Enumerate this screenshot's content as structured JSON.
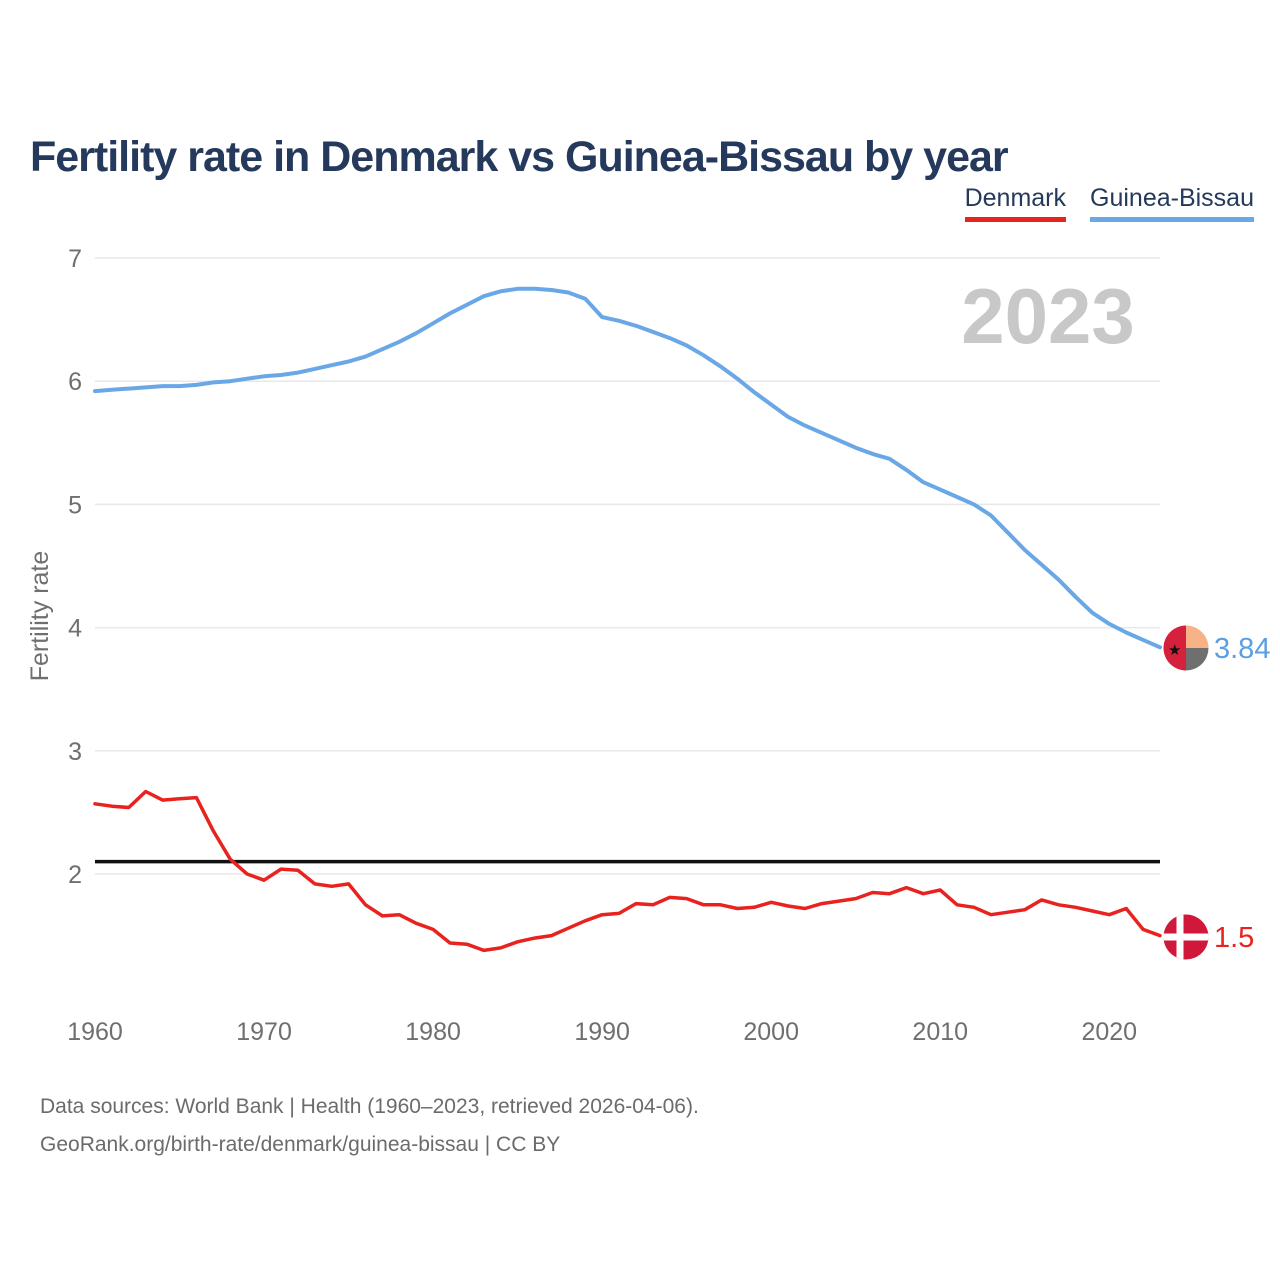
{
  "title": "Fertility rate in Denmark vs Guinea-Bissau by year",
  "watermark": "2023",
  "legend": [
    {
      "label": "Denmark",
      "color": "#e8231f"
    },
    {
      "label": "Guinea-Bissau",
      "color": "#6aa7e6"
    }
  ],
  "y_axis": {
    "label": "Fertility rate",
    "ticks": [
      7,
      6,
      5,
      4,
      3,
      2
    ]
  },
  "x_axis": {
    "ticks": [
      1960,
      1970,
      1980,
      1990,
      2000,
      2010,
      2020
    ]
  },
  "reference_line": {
    "value": 2.1,
    "color": "#111111"
  },
  "end_labels": {
    "guinea_bissau": "3.84",
    "denmark": "1.5"
  },
  "source": {
    "line1": "Data sources: World Bank | Health (1960–2023, retrieved 2026-04-06).",
    "line2": "GeoRank.org/birth-rate/denmark/guinea-bissau | CC BY"
  },
  "colors": {
    "title": "#24395b",
    "grid": "#e8e8e8",
    "tick_text": "#6f6f6f",
    "watermark": "#c8c8c8",
    "denmark_line": "#e8231f",
    "guinea_bissau_line": "#6aa7e6",
    "reference_line": "#111111"
  },
  "chart_data": {
    "type": "line",
    "title": "Fertility rate in Denmark vs Guinea-Bissau by year",
    "xlabel": "",
    "ylabel": "Fertility rate",
    "x_range": [
      1960,
      2023
    ],
    "ylim": [
      1.2,
      7.05
    ],
    "grid": "horizontal",
    "legend_position": "top-right",
    "reference_line": 2.1,
    "x": [
      1960,
      1961,
      1962,
      1963,
      1964,
      1965,
      1966,
      1967,
      1968,
      1969,
      1970,
      1971,
      1972,
      1973,
      1974,
      1975,
      1976,
      1977,
      1978,
      1979,
      1980,
      1981,
      1982,
      1983,
      1984,
      1985,
      1986,
      1987,
      1988,
      1989,
      1990,
      1991,
      1992,
      1993,
      1994,
      1995,
      1996,
      1997,
      1998,
      1999,
      2000,
      2001,
      2002,
      2003,
      2004,
      2005,
      2006,
      2007,
      2008,
      2009,
      2010,
      2011,
      2012,
      2013,
      2014,
      2015,
      2016,
      2017,
      2018,
      2019,
      2020,
      2021,
      2022,
      2023
    ],
    "series": [
      {
        "name": "Guinea-Bissau",
        "color": "#6aa7e6",
        "end_value": 3.84,
        "values": [
          5.92,
          5.93,
          5.94,
          5.95,
          5.96,
          5.96,
          5.97,
          5.99,
          6.0,
          6.02,
          6.04,
          6.05,
          6.07,
          6.1,
          6.13,
          6.16,
          6.2,
          6.26,
          6.32,
          6.39,
          6.47,
          6.55,
          6.62,
          6.69,
          6.73,
          6.75,
          6.75,
          6.74,
          6.72,
          6.67,
          6.52,
          6.49,
          6.45,
          6.4,
          6.35,
          6.29,
          6.21,
          6.12,
          6.02,
          5.91,
          5.81,
          5.71,
          5.64,
          5.58,
          5.52,
          5.46,
          5.41,
          5.37,
          5.28,
          5.18,
          5.12,
          5.06,
          5.0,
          4.91,
          4.77,
          4.63,
          4.51,
          4.39,
          4.25,
          4.12,
          4.03,
          3.96,
          3.9,
          3.84
        ]
      },
      {
        "name": "Denmark",
        "color": "#e8231f",
        "end_value": 1.5,
        "values": [
          2.57,
          2.55,
          2.54,
          2.67,
          2.6,
          2.61,
          2.62,
          2.35,
          2.12,
          2.0,
          1.95,
          2.04,
          2.03,
          1.92,
          1.9,
          1.92,
          1.75,
          1.66,
          1.67,
          1.6,
          1.55,
          1.44,
          1.43,
          1.38,
          1.4,
          1.45,
          1.48,
          1.5,
          1.56,
          1.62,
          1.67,
          1.68,
          1.76,
          1.75,
          1.81,
          1.8,
          1.75,
          1.75,
          1.72,
          1.73,
          1.77,
          1.74,
          1.72,
          1.76,
          1.78,
          1.8,
          1.85,
          1.84,
          1.89,
          1.84,
          1.87,
          1.75,
          1.73,
          1.67,
          1.69,
          1.71,
          1.79,
          1.75,
          1.73,
          1.7,
          1.67,
          1.72,
          1.55,
          1.5
        ]
      }
    ]
  }
}
